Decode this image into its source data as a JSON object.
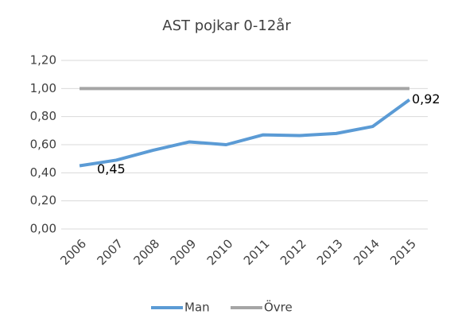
{
  "chart_data": {
    "type": "line",
    "title": "AST pojkar 0-12år",
    "categories": [
      "2006",
      "2007",
      "2008",
      "2009",
      "2010",
      "2011",
      "2012",
      "2013",
      "2014",
      "2015"
    ],
    "series": [
      {
        "name": "Man",
        "color": "#5b9bd5",
        "values": [
          0.45,
          0.49,
          0.56,
          0.62,
          0.6,
          0.67,
          0.665,
          0.68,
          0.73,
          0.92
        ],
        "value_labels": [
          "0,45",
          null,
          null,
          null,
          null,
          null,
          null,
          null,
          null,
          "0,92"
        ]
      },
      {
        "name": "Övre",
        "color": "#a5a5a5",
        "values": [
          1.0,
          1.0,
          1.0,
          1.0,
          1.0,
          1.0,
          1.0,
          1.0,
          1.0,
          1.0
        ]
      }
    ],
    "ylim": [
      0,
      1.2
    ],
    "yticks": [
      {
        "value": 0,
        "label": "0,00"
      },
      {
        "value": 0.2,
        "label": "0,20"
      },
      {
        "value": 0.4,
        "label": "0,40"
      },
      {
        "value": 0.6,
        "label": "0,60"
      },
      {
        "value": 0.8,
        "label": "0,80"
      },
      {
        "value": 1.0,
        "label": "1,00"
      },
      {
        "value": 1.2,
        "label": "1,20"
      }
    ],
    "grid": true,
    "legend": "bottom"
  }
}
